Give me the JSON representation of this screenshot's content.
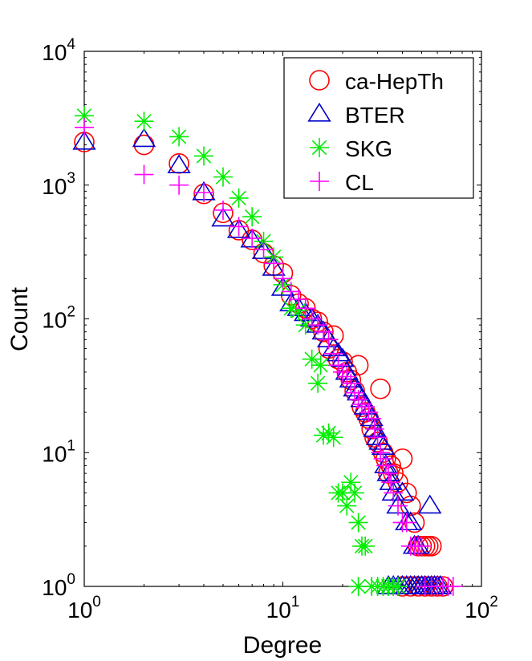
{
  "chart_data": {
    "type": "scatter",
    "xscale": "log",
    "yscale": "log",
    "xlabel": "Degree",
    "ylabel": "Count",
    "xlim": [
      1,
      100
    ],
    "ylim": [
      1,
      10000
    ],
    "xticks": [
      {
        "value": 1,
        "base": "10",
        "exp": "0"
      },
      {
        "value": 10,
        "base": "10",
        "exp": "1"
      },
      {
        "value": 100,
        "base": "10",
        "exp": "2"
      }
    ],
    "yticks": [
      {
        "value": 1,
        "base": "10",
        "exp": "0"
      },
      {
        "value": 10,
        "base": "10",
        "exp": "1"
      },
      {
        "value": 100,
        "base": "10",
        "exp": "2"
      },
      {
        "value": 1000,
        "base": "10",
        "exp": "3"
      },
      {
        "value": 10000,
        "base": "10",
        "exp": "4"
      }
    ],
    "legend_position": "top-right",
    "series": [
      {
        "name": "ca-HepTh",
        "marker": "circle",
        "color": "#ff0000",
        "points": [
          [
            1,
            2100
          ],
          [
            2,
            2000
          ],
          [
            3,
            1450
          ],
          [
            4,
            860
          ],
          [
            5,
            620
          ],
          [
            6,
            460
          ],
          [
            7,
            390
          ],
          [
            8,
            310
          ],
          [
            9,
            250
          ],
          [
            10,
            220
          ],
          [
            11,
            150
          ],
          [
            12,
            130
          ],
          [
            13,
            120
          ],
          [
            14,
            100
          ],
          [
            15,
            95
          ],
          [
            16,
            80
          ],
          [
            17,
            60
          ],
          [
            18,
            75
          ],
          [
            19,
            50
          ],
          [
            20,
            48
          ],
          [
            21,
            40
          ],
          [
            22,
            35
          ],
          [
            23,
            29
          ],
          [
            24,
            45
          ],
          [
            25,
            22
          ],
          [
            26,
            20
          ],
          [
            27,
            18
          ],
          [
            28,
            15
          ],
          [
            29,
            13
          ],
          [
            30,
            12
          ],
          [
            31,
            30
          ],
          [
            32,
            10
          ],
          [
            33,
            9
          ],
          [
            34,
            7
          ],
          [
            35,
            8
          ],
          [
            36,
            7
          ],
          [
            38,
            6
          ],
          [
            40,
            9
          ],
          [
            42,
            5
          ],
          [
            44,
            4
          ],
          [
            46,
            3
          ],
          [
            48,
            2
          ],
          [
            50,
            2
          ],
          [
            52,
            2
          ],
          [
            54,
            2
          ],
          [
            56,
            2
          ],
          [
            40,
            1
          ],
          [
            44,
            1
          ],
          [
            48,
            1
          ],
          [
            52,
            1
          ],
          [
            56,
            1
          ],
          [
            60,
            1
          ],
          [
            64,
            1
          ]
        ]
      },
      {
        "name": "BTER",
        "marker": "triangle",
        "color": "#0000cc",
        "points": [
          [
            1,
            2100
          ],
          [
            2,
            2200
          ],
          [
            3,
            1400
          ],
          [
            4,
            880
          ],
          [
            5,
            560
          ],
          [
            6,
            460
          ],
          [
            7,
            390
          ],
          [
            8,
            320
          ],
          [
            9,
            240
          ],
          [
            10,
            170
          ],
          [
            11,
            130
          ],
          [
            12,
            120
          ],
          [
            13,
            110
          ],
          [
            14,
            100
          ],
          [
            15,
            90
          ],
          [
            16,
            80
          ],
          [
            17,
            70
          ],
          [
            18,
            60
          ],
          [
            19,
            55
          ],
          [
            20,
            50
          ],
          [
            21,
            40
          ],
          [
            22,
            35
          ],
          [
            23,
            30
          ],
          [
            24,
            28
          ],
          [
            25,
            25
          ],
          [
            26,
            22
          ],
          [
            27,
            20
          ],
          [
            28,
            18
          ],
          [
            29,
            15
          ],
          [
            30,
            13
          ],
          [
            31,
            12
          ],
          [
            32,
            11
          ],
          [
            33,
            8
          ],
          [
            34,
            7
          ],
          [
            35,
            6
          ],
          [
            36,
            5
          ],
          [
            38,
            4
          ],
          [
            40,
            5
          ],
          [
            42,
            3
          ],
          [
            44,
            3
          ],
          [
            46,
            2
          ],
          [
            48,
            2
          ],
          [
            55,
            4
          ],
          [
            34,
            1
          ],
          [
            36,
            1
          ],
          [
            38,
            1
          ],
          [
            40,
            1
          ],
          [
            42,
            1
          ],
          [
            44,
            1
          ],
          [
            46,
            1
          ],
          [
            48,
            1
          ],
          [
            50,
            1
          ],
          [
            52,
            1
          ],
          [
            54,
            1
          ],
          [
            56,
            1
          ],
          [
            58,
            1
          ],
          [
            60,
            1
          ],
          [
            62,
            1
          ]
        ]
      },
      {
        "name": "SKG",
        "marker": "asterisk",
        "color": "#00ee00",
        "points": [
          [
            1,
            3300
          ],
          [
            2,
            3000
          ],
          [
            3,
            2300
          ],
          [
            4,
            1650
          ],
          [
            5,
            1150
          ],
          [
            6,
            800
          ],
          [
            7,
            580
          ],
          [
            8,
            380
          ],
          [
            9,
            290
          ],
          [
            10,
            180
          ],
          [
            11,
            120
          ],
          [
            12,
            115
          ],
          [
            13,
            90
          ],
          [
            14,
            50
          ],
          [
            15,
            33
          ],
          [
            15.5,
            45
          ],
          [
            16,
            13.5
          ],
          [
            17,
            14
          ],
          [
            18,
            13
          ],
          [
            19,
            5
          ],
          [
            20,
            5
          ],
          [
            21,
            4
          ],
          [
            22,
            6
          ],
          [
            23,
            5
          ],
          [
            24,
            3
          ],
          [
            25,
            2
          ],
          [
            26,
            2
          ],
          [
            24,
            1
          ],
          [
            28,
            1
          ],
          [
            30,
            1
          ],
          [
            32,
            1
          ],
          [
            34,
            1
          ],
          [
            36,
            1
          ],
          [
            38,
            1
          ]
        ]
      },
      {
        "name": "CL",
        "marker": "plus",
        "color": "#ff00ff",
        "points": [
          [
            1,
            2700
          ],
          [
            2,
            1200
          ],
          [
            3,
            1000
          ],
          [
            4,
            880
          ],
          [
            5,
            650
          ],
          [
            6,
            490
          ],
          [
            7,
            400
          ],
          [
            8,
            330
          ],
          [
            9,
            260
          ],
          [
            10,
            200
          ],
          [
            11,
            160
          ],
          [
            12,
            140
          ],
          [
            13,
            120
          ],
          [
            14,
            100
          ],
          [
            15,
            90
          ],
          [
            16,
            80
          ],
          [
            17,
            70
          ],
          [
            18,
            55
          ],
          [
            19,
            45
          ],
          [
            20,
            40
          ],
          [
            21,
            37
          ],
          [
            22,
            33
          ],
          [
            23,
            28
          ],
          [
            24,
            25
          ],
          [
            25,
            23
          ],
          [
            26,
            22
          ],
          [
            27,
            20
          ],
          [
            28,
            18
          ],
          [
            29,
            15
          ],
          [
            30,
            13
          ],
          [
            31,
            10
          ],
          [
            32,
            9
          ],
          [
            33,
            8
          ],
          [
            34,
            7
          ],
          [
            35,
            6
          ],
          [
            36,
            5
          ],
          [
            38,
            4
          ],
          [
            40,
            3
          ],
          [
            42,
            3
          ],
          [
            44,
            2
          ],
          [
            46,
            2
          ],
          [
            48,
            2
          ],
          [
            50,
            2
          ],
          [
            52,
            1
          ],
          [
            56,
            1
          ],
          [
            60,
            1
          ],
          [
            64,
            1
          ],
          [
            68,
            1
          ],
          [
            72,
            1
          ]
        ]
      }
    ]
  }
}
